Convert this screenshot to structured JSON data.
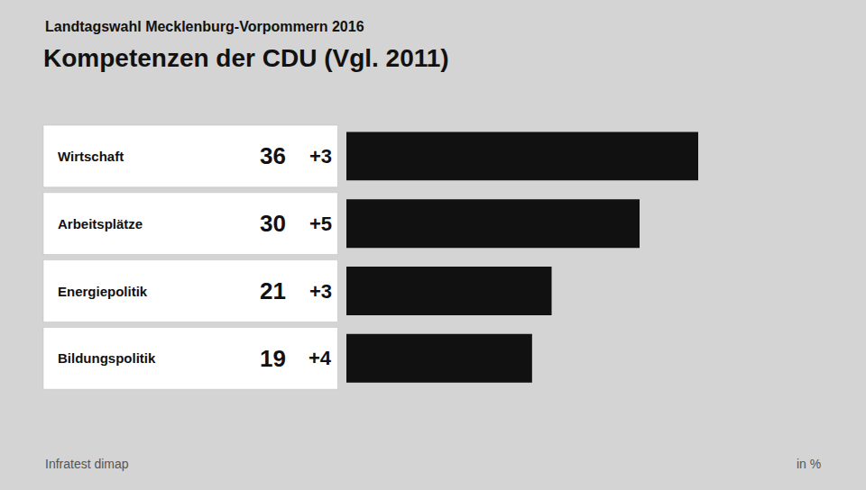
{
  "chart_data": {
    "type": "bar",
    "orientation": "horizontal",
    "subtitle": "Landtagswahl Mecklenburg-Vorpommern 2016",
    "title": "Kompetenzen der CDU (Vgl. 2011)",
    "categories": [
      "Wirtschaft",
      "Arbeitsplätze",
      "Energiepolitik",
      "Bildungspolitik"
    ],
    "values": [
      36,
      30,
      21,
      19
    ],
    "changes": [
      "+3",
      "+5",
      "+3",
      "+4"
    ],
    "color": "#111111",
    "xlim": [
      0,
      46.08
    ],
    "data_labels": true,
    "tick_labels": false,
    "grid": false,
    "annotations": [
      "Infratest dimap",
      "in %"
    ]
  }
}
